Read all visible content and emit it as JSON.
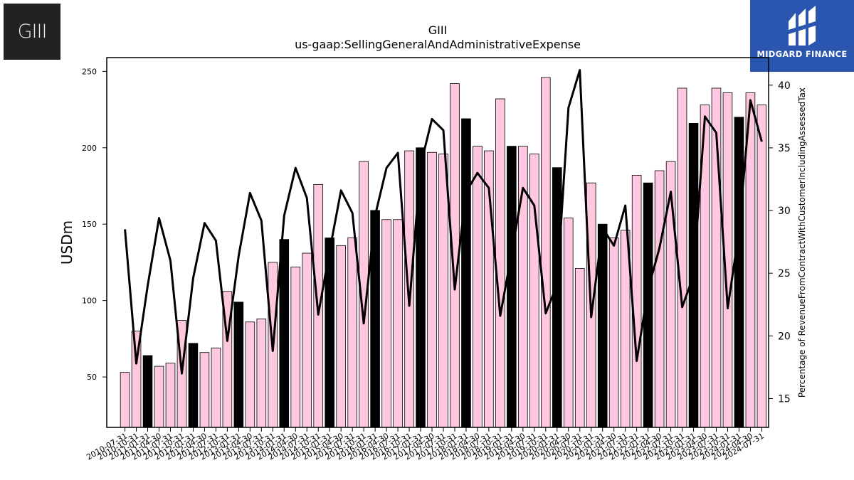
{
  "logos": {
    "company_logo_text": "GIII",
    "brand_name": "MIDGARD FINANCE"
  },
  "chart_data": {
    "type": "bar",
    "title": "GIII",
    "subtitle": "us-gaap:SellingGeneralAndAdministrativeExpense",
    "ylabel": "USDm",
    "y2label": "Percentage of RevenueFromContractWithCustomerIncludingAssessedTax",
    "ylim": [
      17,
      259
    ],
    "y2lim": [
      12.7,
      42.2
    ],
    "yticks": [
      50,
      100,
      150,
      200,
      250
    ],
    "y2ticks": [
      15,
      20,
      25,
      30,
      35,
      40
    ],
    "categories": [
      "2010-07-31",
      "2010-10-31",
      "2011-01-31",
      "2011-04-30",
      "2011-07-31",
      "2011-10-31",
      "2012-01-31",
      "2012-04-30",
      "2012-07-31",
      "2012-10-31",
      "2013-01-31",
      "2013-04-30",
      "2013-07-31",
      "2013-10-31",
      "2014-01-31",
      "2014-04-30",
      "2014-07-31",
      "2014-10-31",
      "2015-01-31",
      "2015-04-30",
      "2015-07-31",
      "2015-10-31",
      "2016-01-31",
      "2016-04-30",
      "2016-07-31",
      "2016-10-31",
      "2017-01-31",
      "2017-04-30",
      "2017-07-31",
      "2017-10-31",
      "2018-01-31",
      "2018-04-30",
      "2018-07-31",
      "2018-10-31",
      "2019-01-31",
      "2019-04-30",
      "2019-07-31",
      "2019-10-31",
      "2020-01-31",
      "2020-04-30",
      "2020-07-31",
      "2020-10-31",
      "2021-01-31",
      "2021-04-30",
      "2021-07-31",
      "2021-10-31",
      "2022-01-31",
      "2022-04-30",
      "2022-07-31",
      "2022-10-31",
      "2023-01-31",
      "2023-04-30",
      "2023-07-31",
      "2023-10-31",
      "2024-01-31",
      "2024-04-30",
      "2024-07-31"
    ],
    "series": [
      {
        "type": "bar",
        "values": [
          53,
          80,
          64,
          57,
          59,
          87,
          72,
          66,
          69,
          106,
          99,
          86,
          88,
          125,
          140,
          122,
          131,
          176,
          141,
          136,
          141,
          191,
          159,
          153,
          153,
          198,
          200,
          197,
          196,
          242,
          219,
          201,
          198,
          232,
          201,
          201,
          196,
          246,
          187,
          154,
          121,
          177,
          150,
          141,
          146,
          182,
          177,
          185,
          191,
          239,
          216,
          228,
          239,
          236,
          220,
          236,
          228
        ],
        "highlight_every": 4,
        "colors": {
          "regular": "#ffc8e0",
          "highlight": "#000000",
          "edge": "#000000"
        }
      },
      {
        "type": "line",
        "values": [
          28.5,
          17.8,
          24.0,
          29.4,
          26.0,
          17.0,
          24.6,
          29.0,
          27.6,
          19.6,
          26.4,
          31.4,
          29.2,
          18.8,
          29.6,
          33.4,
          31.0,
          21.7,
          26.8,
          31.6,
          29.8,
          21.0,
          29.6,
          33.4,
          34.6,
          22.4,
          33.6,
          37.3,
          36.4,
          23.7,
          31.5,
          33.0,
          31.8,
          21.6,
          26.6,
          31.8,
          30.4,
          21.8,
          24.1,
          38.2,
          41.2,
          21.5,
          28.6,
          27.2,
          30.4,
          18.0,
          23.7,
          27.0,
          31.5,
          22.3,
          24.8,
          37.5,
          36.2,
          22.2,
          28.4,
          38.8,
          35.5
        ],
        "color": "#000000"
      }
    ],
    "grid": false,
    "legend": "none"
  }
}
